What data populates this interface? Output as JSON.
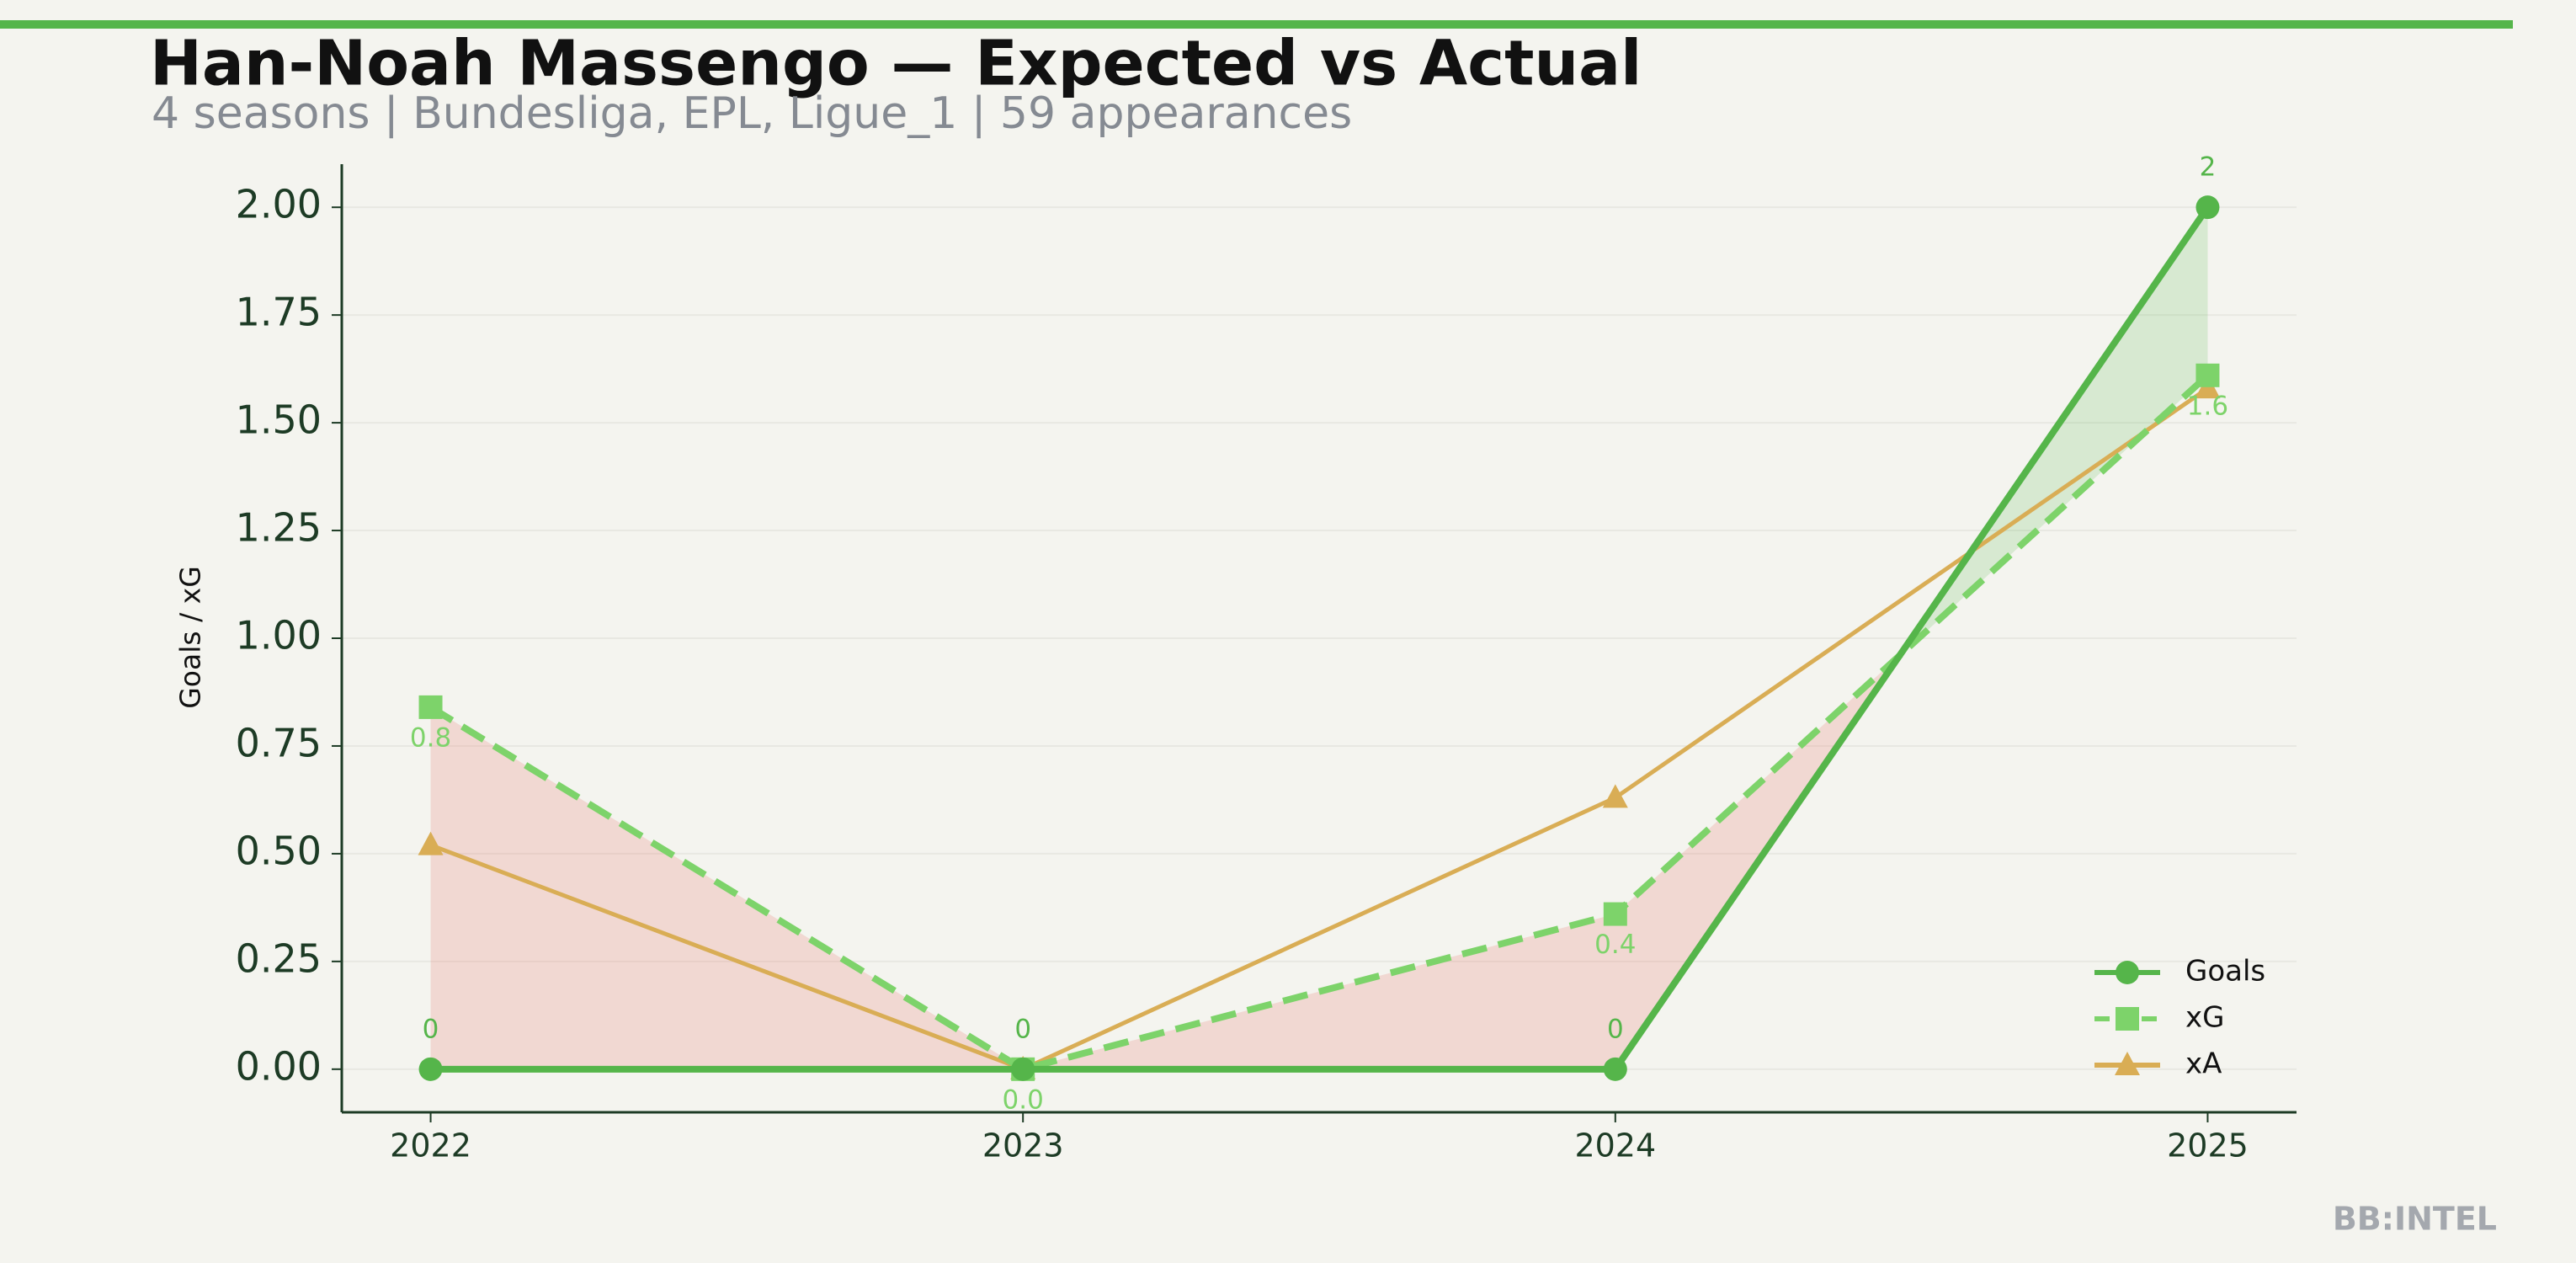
{
  "chart_data": {
    "type": "line",
    "title": "Han-Noah Massengo — Expected vs Actual",
    "subtitle": "4 seasons | Bundesliga, EPL, Ligue_1 | 59 appearances",
    "y_label": "Goals / xG",
    "watermark": "BB:INTEL",
    "categories": [
      "2022",
      "2023",
      "2024",
      "2025"
    ],
    "series": [
      {
        "name": "Goals",
        "color": "#55b54a",
        "marker": "circle",
        "dashed": false,
        "values": [
          0,
          0,
          0,
          2
        ]
      },
      {
        "name": "xG",
        "color": "#7dd36a",
        "marker": "square",
        "dashed": true,
        "values": [
          0.84,
          0.0,
          0.36,
          1.61
        ],
        "value_labels": [
          "0.8",
          "0.0",
          "0.4",
          "1.6"
        ]
      },
      {
        "name": "xA",
        "color": "#d9ad55",
        "marker": "triangle",
        "dashed": false,
        "values": [
          0.52,
          0.0,
          0.63,
          1.58
        ]
      }
    ],
    "ylim": [
      -0.1,
      2.1
    ],
    "yticks": [
      {
        "value": 0,
        "label": "0.00"
      },
      {
        "value": 0.25,
        "label": "0.25"
      },
      {
        "value": 0.5,
        "label": "0.50"
      },
      {
        "value": 0.75,
        "label": "0.75"
      },
      {
        "value": 1,
        "label": "1.00"
      },
      {
        "value": 1.25,
        "label": "1.25"
      },
      {
        "value": 1.5,
        "label": "1.50"
      },
      {
        "value": 1.75,
        "label": "1.75"
      },
      {
        "value": 2,
        "label": "2.00"
      }
    ],
    "grid": true,
    "legend": "lower right"
  }
}
